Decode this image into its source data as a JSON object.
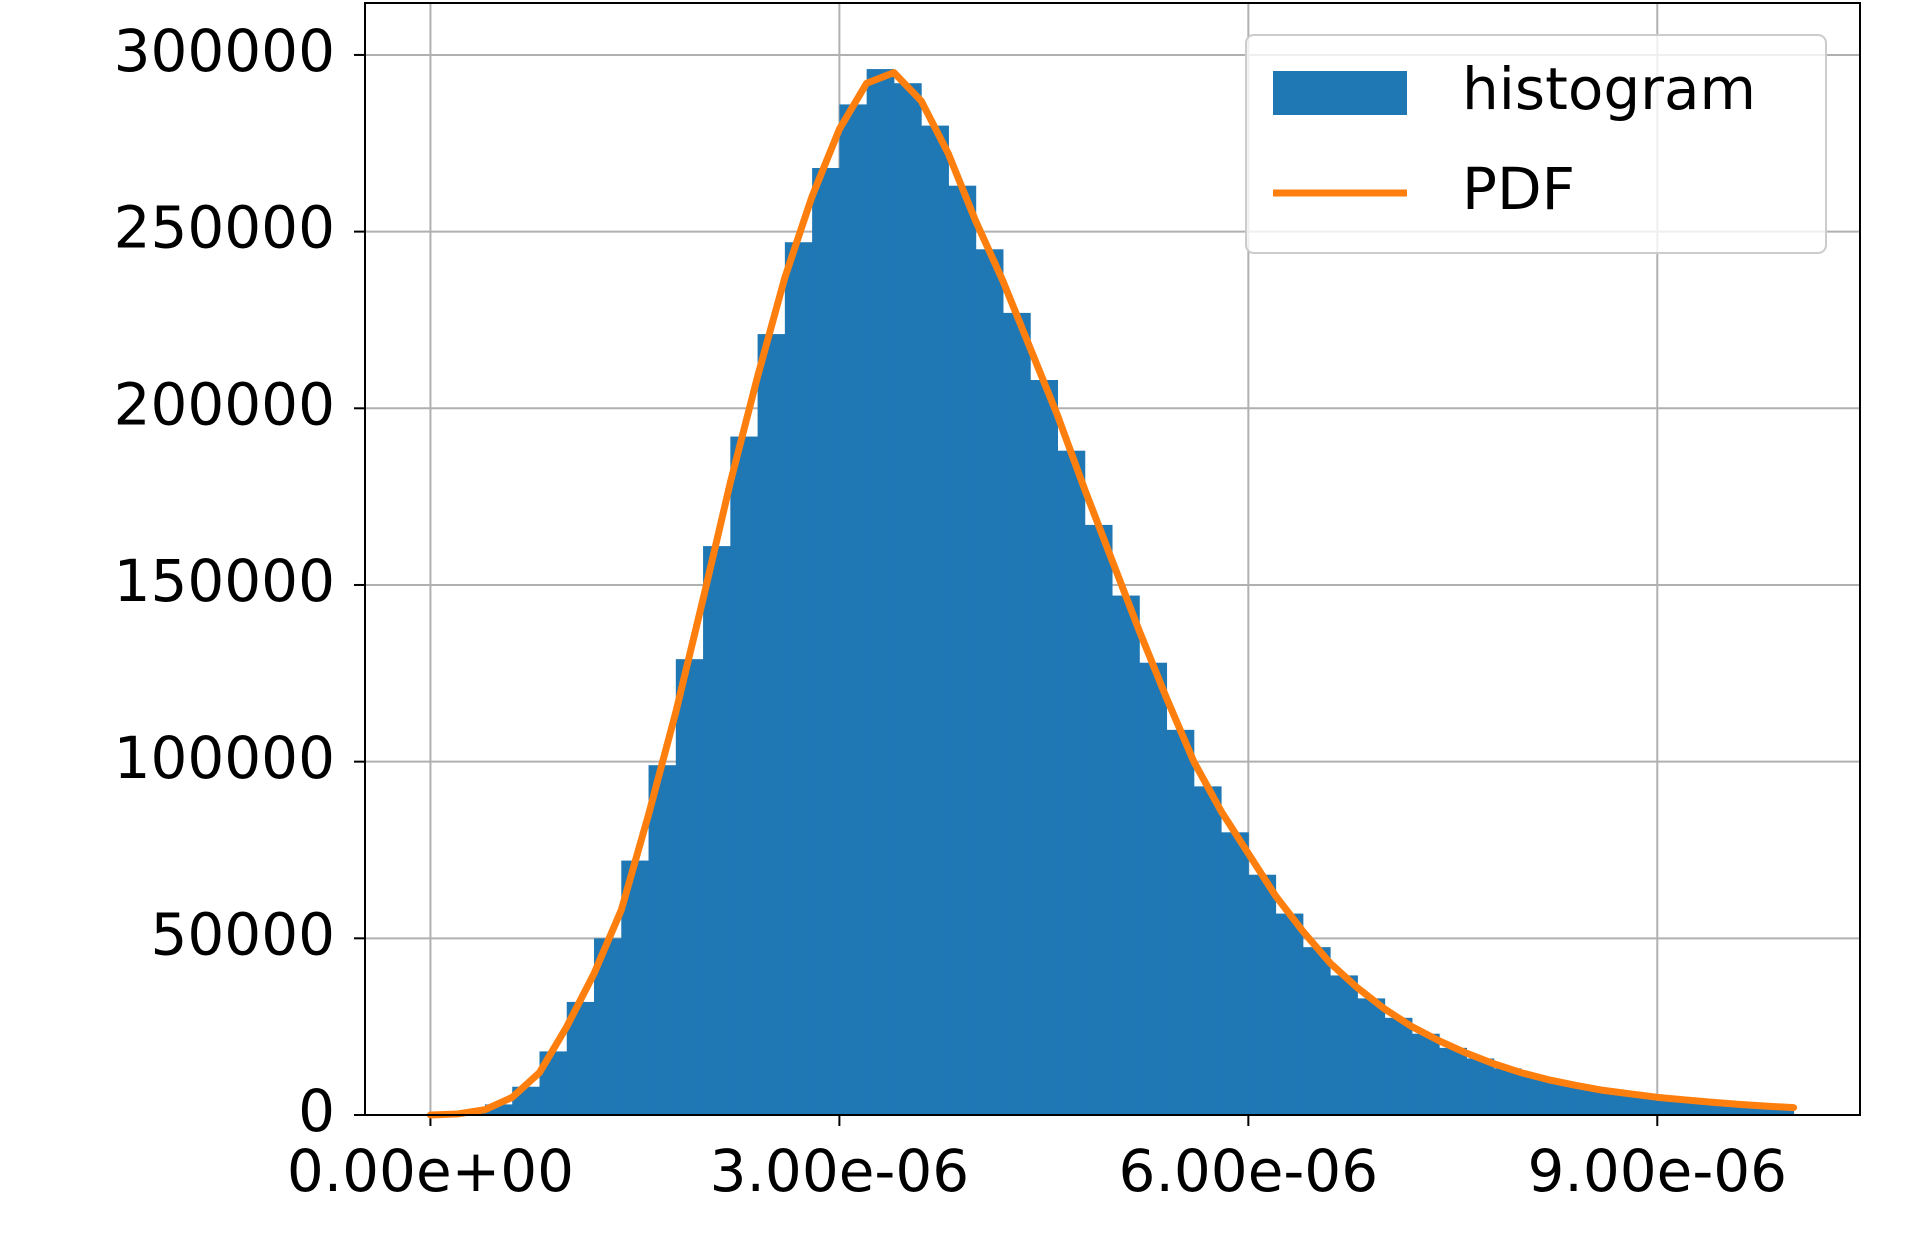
{
  "chart_data": {
    "type": "histogram",
    "bins": [
      0,
      2e-07,
      4e-07,
      6e-07,
      8e-07,
      1e-06,
      1.2e-06,
      1.4e-06,
      1.6e-06,
      1.8e-06,
      2e-06,
      2.2e-06,
      2.4e-06,
      2.6e-06,
      2.8e-06,
      3e-06,
      3.2e-06,
      3.4e-06,
      3.6e-06,
      3.8e-06,
      4e-06,
      4.2e-06,
      4.4e-06,
      4.6e-06,
      4.8e-06,
      5e-06,
      5.2e-06,
      5.4e-06,
      5.6e-06,
      5.8e-06,
      6e-06,
      6.2e-06,
      6.4e-06,
      6.6e-06,
      6.8e-06,
      7e-06,
      7.2e-06,
      7.4e-06,
      7.6e-06,
      7.8e-06,
      8e-06,
      8.2e-06,
      8.4e-06,
      8.6e-06,
      8.8e-06,
      9e-06,
      9.2e-06,
      9.4e-06,
      9.6e-06,
      9.8e-06,
      1e-05
    ],
    "series": [
      {
        "name": "histogram",
        "type": "histogram",
        "color": "#1f77b4",
        "values": [
          100,
          800,
          3000,
          8000,
          18000,
          32000,
          50000,
          72000,
          99000,
          129000,
          161000,
          192000,
          221000,
          247000,
          268000,
          286000,
          296000,
          292000,
          280000,
          263000,
          245000,
          227000,
          208000,
          188000,
          167000,
          147000,
          128000,
          109000,
          93000,
          80000,
          68000,
          57000,
          47500,
          39500,
          33000,
          27500,
          23000,
          19000,
          16000,
          13200,
          11000,
          9200,
          7700,
          6500,
          5500,
          4600,
          3900,
          3300,
          2700,
          2300
        ]
      },
      {
        "name": "PDF",
        "type": "line",
        "color": "#ff7f0e",
        "x": [
          0,
          2e-07,
          4e-07,
          6e-07,
          8e-07,
          1e-06,
          1.2e-06,
          1.4e-06,
          1.6e-06,
          1.8e-06,
          2e-06,
          2.2e-06,
          2.4e-06,
          2.6e-06,
          2.8e-06,
          3e-06,
          3.2e-06,
          3.4e-06,
          3.6e-06,
          3.8e-06,
          4e-06,
          4.2e-06,
          4.4e-06,
          4.6e-06,
          4.8e-06,
          5e-06,
          5.2e-06,
          5.4e-06,
          5.6e-06,
          5.8e-06,
          6e-06,
          6.2e-06,
          6.4e-06,
          6.6e-06,
          6.8e-06,
          7e-06,
          7.2e-06,
          7.4e-06,
          7.6e-06,
          7.8e-06,
          8e-06,
          8.2e-06,
          8.4e-06,
          8.6e-06,
          8.8e-06,
          9e-06,
          9.2e-06,
          9.4e-06,
          9.6e-06,
          9.8e-06,
          1e-05
        ],
        "values": [
          0,
          300,
          1500,
          5000,
          12000,
          25000,
          40000,
          58000,
          85000,
          114000,
          146000,
          179000,
          209000,
          237000,
          260000,
          279000,
          292000,
          295000,
          287000,
          272000,
          253000,
          236000,
          217000,
          198000,
          177000,
          157000,
          137000,
          118000,
          100000,
          86000,
          74000,
          62000,
          52000,
          43000,
          36000,
          30000,
          25000,
          21000,
          17500,
          14500,
          12000,
          10000,
          8400,
          7000,
          6000,
          5000,
          4300,
          3600,
          3000,
          2500,
          2100
        ]
      }
    ],
    "xlim": [
      -4.8e-07,
      1.0487e-05
    ],
    "ylim": [
      0,
      314700
    ],
    "xticks": [
      {
        "value": 0,
        "label": "0.00e+00"
      },
      {
        "value": 3e-06,
        "label": "3.00e-06"
      },
      {
        "value": 6e-06,
        "label": "6.00e-06"
      },
      {
        "value": 9e-06,
        "label": "9.00e-06"
      }
    ],
    "yticks": [
      0,
      50000,
      100000,
      150000,
      200000,
      250000,
      300000
    ],
    "grid": true,
    "legend": "upper right"
  }
}
